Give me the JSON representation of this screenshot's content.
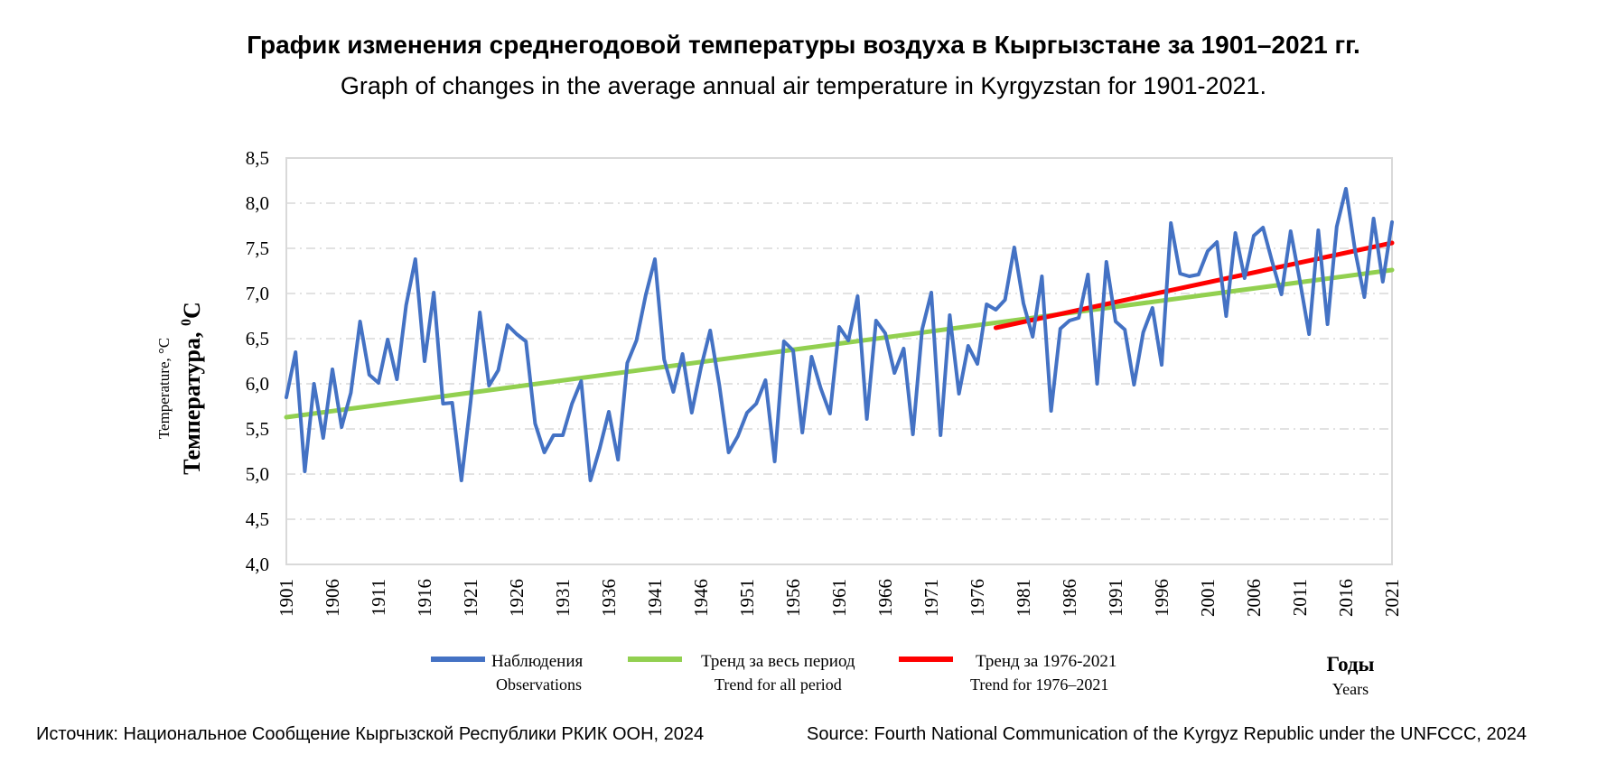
{
  "title_ru": "График изменения среднегодовой температуры воздуха в Кыргызстане за 1901–2021 гг.",
  "title_en": "Graph of changes in the average annual air temperature in Kyrgyzstan for 1901-2021.",
  "source_ru": "Источник: Национальное Сообщение Кыргызской Республики РКИК ООН, 2024",
  "source_en": "Source: Fourth National Communication of the Kyrgyz Republic under the UNFCCC, 2024",
  "chart_data": {
    "type": "line",
    "ylabel_en": "Temperature, °C",
    "ylabel_ru": "Температура, ",
    "ylabel_ru_sup": "0",
    "ylabel_ru_unit": "C",
    "xlabel_ru": "Годы",
    "xlabel_en": "Years",
    "ylim": [
      4.0,
      8.5
    ],
    "xlim": [
      1901,
      2021
    ],
    "yticks": [
      "4,0",
      "4,5",
      "5,0",
      "5,5",
      "6,0",
      "6,5",
      "7,0",
      "7,5",
      "8,0",
      "8,5"
    ],
    "xticks": [
      "1901",
      "1906",
      "1911",
      "1916",
      "1921",
      "1926",
      "1931",
      "1936",
      "1941",
      "1946",
      "1951",
      "1956",
      "1961",
      "1966",
      "1971",
      "1976",
      "1981",
      "1986",
      "1991",
      "1996",
      "2001",
      "2006",
      "2011",
      "2016",
      "2021"
    ],
    "grid": "horizontal dashed",
    "legend_position": "bottom",
    "colors": {
      "observations": "#4472C4",
      "trend_all": "#92D050",
      "trend_recent": "#FF0000",
      "grid": "#d9d9d9",
      "frame": "#d9d9d9"
    },
    "legend": [
      {
        "name": "Наблюдения",
        "name_en": "Observations",
        "color": "#4472C4"
      },
      {
        "name": "Тренд за весь период",
        "name_en": "Trend for all period",
        "color": "#92D050"
      },
      {
        "name": "Тренд за 1976-2021",
        "name_en": "Trend for 1976–2021",
        "color": "#FF0000"
      }
    ],
    "series": [
      {
        "name": "Наблюдения",
        "x_start": 1901,
        "values": [
          5.85,
          6.35,
          5.03,
          6.0,
          5.4,
          6.16,
          5.52,
          5.9,
          6.69,
          6.1,
          6.01,
          6.49,
          6.05,
          6.87,
          7.38,
          6.25,
          7.01,
          5.78,
          5.79,
          4.93,
          5.8,
          6.79,
          5.98,
          6.15,
          6.65,
          6.55,
          6.47,
          5.56,
          5.24,
          5.43,
          5.43,
          5.78,
          6.03,
          4.93,
          5.28,
          5.69,
          5.16,
          6.23,
          6.48,
          6.98,
          7.38,
          6.27,
          5.91,
          6.33,
          5.68,
          6.18,
          6.59,
          5.98,
          5.24,
          5.42,
          5.68,
          5.78,
          6.04,
          5.14,
          6.47,
          6.37,
          5.46,
          6.3,
          5.95,
          5.67,
          6.63,
          6.48,
          6.97,
          5.61,
          6.7,
          6.56,
          6.12,
          6.39,
          5.44,
          6.6,
          7.01,
          5.43,
          6.76,
          5.89,
          6.42,
          6.22,
          6.88,
          6.82,
          6.93,
          7.51,
          6.89,
          6.52,
          7.19,
          5.7,
          6.61,
          6.7,
          6.73,
          7.21,
          6.0,
          7.35,
          6.69,
          6.6,
          5.99,
          6.57,
          6.84,
          6.21,
          7.78,
          7.22,
          7.19,
          7.21,
          7.47,
          7.57,
          6.75,
          7.67,
          7.17,
          7.64,
          7.73,
          7.35,
          6.99,
          7.69,
          7.14,
          6.55,
          7.7,
          6.66,
          7.74,
          8.16,
          7.47,
          6.96,
          7.83,
          7.13,
          7.79
        ]
      },
      {
        "name": "Тренд за весь период",
        "x": [
          1901,
          2021
        ],
        "values": [
          5.63,
          7.26
        ]
      },
      {
        "name": "Тренд за 1976-2021",
        "x": [
          1978,
          2021
        ],
        "values": [
          6.62,
          7.56
        ]
      }
    ]
  }
}
